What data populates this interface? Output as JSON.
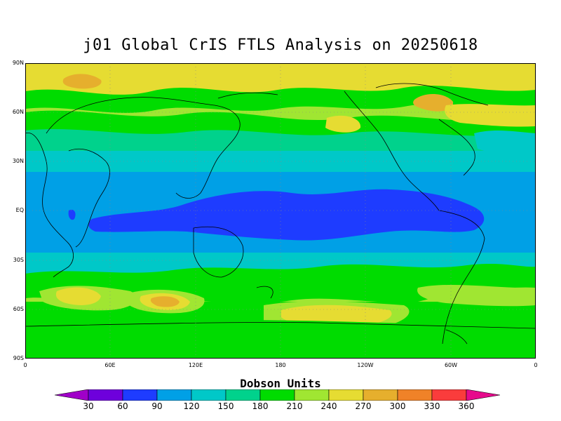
{
  "title": "j01 Global CrIS FTLS Analysis on 20250618",
  "lat_ticks": [
    "90N",
    "60N",
    "30N",
    "EQ",
    "30S",
    "60S",
    "90S"
  ],
  "lon_ticks": [
    "0",
    "60E",
    "120E",
    "180",
    "120W",
    "60W",
    "0"
  ],
  "colorbar": {
    "title": "Dobson Units",
    "labels": [
      "30",
      "60",
      "90",
      "120",
      "150",
      "180",
      "210",
      "240",
      "270",
      "300",
      "330",
      "360"
    ],
    "colors": [
      "#a000c8",
      "#6e00dc",
      "#1e3cff",
      "#00a0e6",
      "#00c8c8",
      "#00d28c",
      "#00dc00",
      "#a0e632",
      "#e6dc32",
      "#e6af2d",
      "#f08228",
      "#fa3c3c",
      "#e60a8c"
    ]
  },
  "map_colors": {
    "band_200_230": "#00dc00",
    "band_230_260": "#a0e632",
    "band_260_290": "#e6dc32",
    "band_290_320": "#e6af2d",
    "band_150_180": "#00c8c8",
    "band_120_150": "#00a0e6",
    "band_90_120": "#1e3cff",
    "band_180_200": "#00d28c"
  }
}
